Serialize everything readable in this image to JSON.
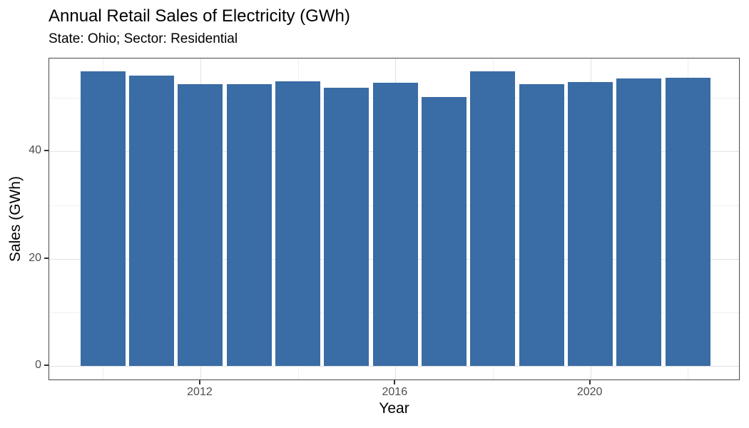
{
  "chart_data": {
    "type": "bar",
    "title": "Annual Retail Sales of Electricity (GWh)",
    "subtitle": "State: Ohio; Sector: Residential",
    "xlabel": "Year",
    "ylabel": "Sales (GWh)",
    "categories": [
      2010,
      2011,
      2012,
      2013,
      2014,
      2015,
      2016,
      2017,
      2018,
      2019,
      2020,
      2021,
      2022
    ],
    "values": [
      54.9,
      54.1,
      52.6,
      52.5,
      53.1,
      51.9,
      52.8,
      50.1,
      54.9,
      52.6,
      52.9,
      53.6,
      53.8
    ],
    "ylim": [
      0,
      57.4
    ],
    "xlim": [
      2008.9,
      2023.1
    ],
    "yticks": {
      "major": [
        0,
        20,
        40
      ],
      "minor": [
        10,
        30,
        50
      ]
    },
    "xticks": {
      "major": [
        2012,
        2016,
        2020
      ],
      "minor": [
        2010,
        2014,
        2018,
        2022
      ]
    },
    "grid": "major+minor",
    "legend": "none",
    "colors": {
      "bar_fill": "#3A6CA5",
      "panel_border": "#4A4A4A",
      "grid_major": "#E2E2E2",
      "grid_minor": "#EFEFEF",
      "tick_label": "#4D4D4D",
      "tick_mark": "#333333",
      "text": "#000000",
      "background": "#FFFFFF"
    }
  }
}
